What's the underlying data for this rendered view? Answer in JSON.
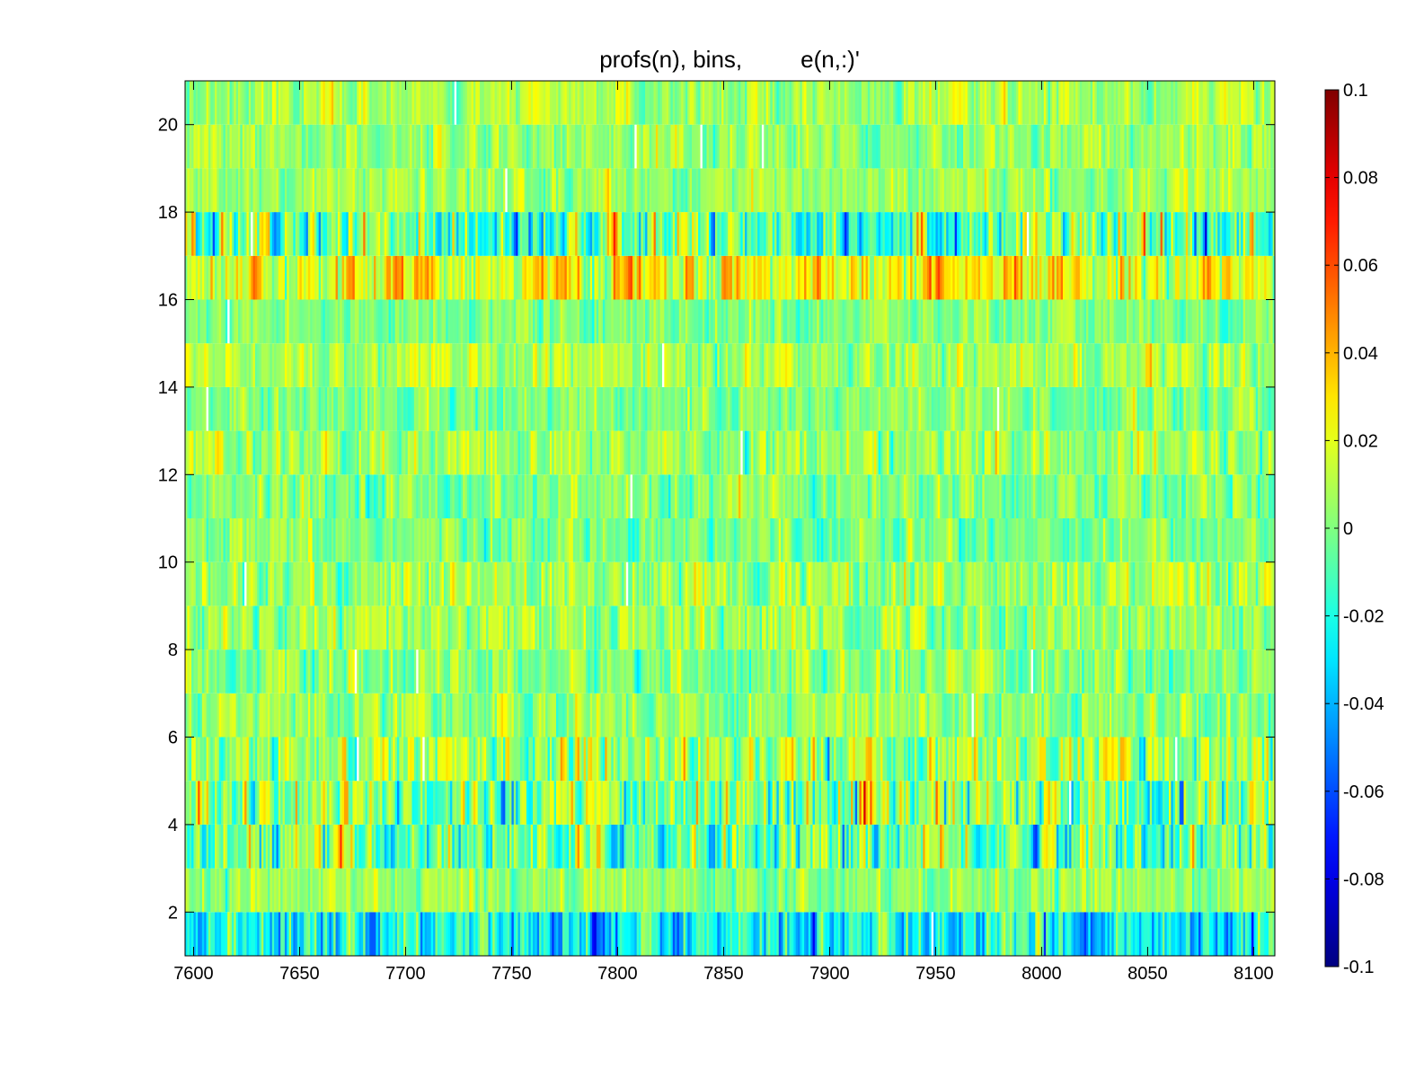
{
  "chart_data": {
    "type": "heatmap",
    "title": "profs(n), bins,         e(n,:)'",
    "xlabel": "",
    "ylabel": "",
    "xlim": [
      7596,
      8110
    ],
    "ylim": [
      1,
      21
    ],
    "x_ticks": [
      7600,
      7650,
      7700,
      7750,
      7800,
      7850,
      7900,
      7950,
      8000,
      8050,
      8100
    ],
    "y_ticks": [
      2,
      4,
      6,
      8,
      10,
      12,
      14,
      16,
      18,
      20
    ],
    "colorbar": {
      "colormap": "jet",
      "clim": [
        -0.1,
        0.1
      ],
      "ticks": [
        0.1,
        0.08,
        0.06,
        0.04,
        0.02,
        0,
        -0.02,
        -0.04,
        -0.06,
        -0.08,
        -0.1
      ],
      "tick_labels": [
        "0.1",
        "0.08",
        "0.06",
        "0.04",
        "0.02",
        "0",
        "-0.02",
        "-0.04",
        "-0.06",
        "-0.08",
        "-0.1"
      ],
      "location": "right"
    },
    "rows": 20,
    "row_y": [
      1.5,
      2.5,
      3.5,
      4.5,
      5.5,
      6.5,
      7.5,
      8.5,
      9.5,
      10.5,
      11.5,
      12.5,
      13.5,
      14.5,
      15.5,
      16.5,
      17.5,
      18.5,
      19.5,
      20.5
    ],
    "row_std": [
      0.03,
      0.014,
      0.032,
      0.034,
      0.026,
      0.017,
      0.016,
      0.018,
      0.019,
      0.015,
      0.016,
      0.018,
      0.015,
      0.016,
      0.014,
      0.025,
      0.038,
      0.014,
      0.015,
      0.014
    ],
    "row_mean": [
      -0.025,
      0.005,
      -0.005,
      0.0,
      0.008,
      0.005,
      0.0,
      0.005,
      0.005,
      0.0,
      0.0,
      0.005,
      0.0,
      0.008,
      0.0,
      0.022,
      -0.005,
      0.005,
      0.005,
      0.008
    ],
    "grid": false,
    "legend": "none"
  }
}
